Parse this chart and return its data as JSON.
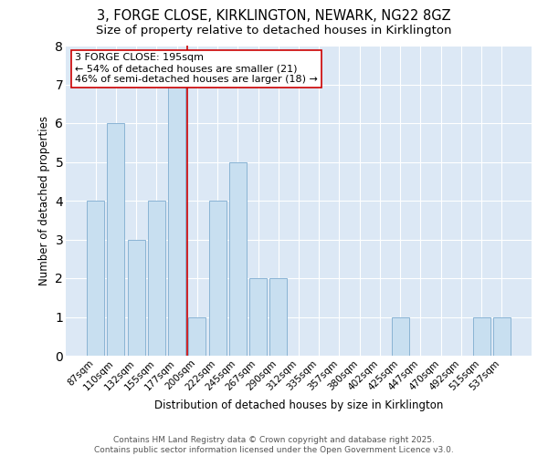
{
  "title1": "3, FORGE CLOSE, KIRKLINGTON, NEWARK, NG22 8GZ",
  "title2": "Size of property relative to detached houses in Kirklington",
  "xlabel": "Distribution of detached houses by size in Kirklington",
  "ylabel": "Number of detached properties",
  "categories": [
    "87sqm",
    "110sqm",
    "132sqm",
    "155sqm",
    "177sqm",
    "200sqm",
    "222sqm",
    "245sqm",
    "267sqm",
    "290sqm",
    "312sqm",
    "335sqm",
    "357sqm",
    "380sqm",
    "402sqm",
    "425sqm",
    "447sqm",
    "470sqm",
    "492sqm",
    "515sqm",
    "537sqm"
  ],
  "values": [
    4,
    6,
    3,
    4,
    7,
    1,
    4,
    5,
    2,
    2,
    0,
    0,
    0,
    0,
    0,
    1,
    0,
    0,
    0,
    1,
    1
  ],
  "bar_color": "#c8dff0",
  "bar_edge_color": "#8ab4d4",
  "vline_x_index": 4.5,
  "vline_color": "#cc0000",
  "annotation_text": "3 FORGE CLOSE: 195sqm\n← 54% of detached houses are smaller (21)\n46% of semi-detached houses are larger (18) →",
  "annotation_box_color": "#ffffff",
  "annotation_box_edge_color": "#cc0000",
  "ylim": [
    0,
    8
  ],
  "yticks": [
    0,
    1,
    2,
    3,
    4,
    5,
    6,
    7,
    8
  ],
  "bg_color": "#ffffff",
  "plot_bg_color": "#dce8f5",
  "grid_color": "#ffffff",
  "footer_text": "Contains HM Land Registry data © Crown copyright and database right 2025.\nContains public sector information licensed under the Open Government Licence v3.0.",
  "title1_fontsize": 10.5,
  "title2_fontsize": 9.5,
  "xlabel_fontsize": 8.5,
  "ylabel_fontsize": 8.5,
  "tick_fontsize": 7.5,
  "annotation_fontsize": 8,
  "footer_fontsize": 6.5
}
